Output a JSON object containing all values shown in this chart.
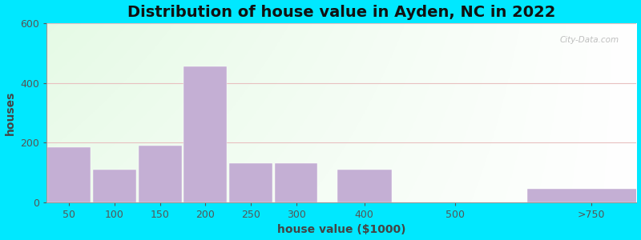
{
  "title": "Distribution of house value in Ayden, NC in 2022",
  "xlabel": "house value ($1000)",
  "ylabel": "houses",
  "bar_labels": [
    "50",
    "100",
    "150",
    "200",
    "250",
    "300",
    "400",
    "500",
    ">750"
  ],
  "bar_heights": [
    185,
    110,
    190,
    455,
    130,
    130,
    110,
    0,
    45
  ],
  "bar_color": "#c4afd4",
  "ylim": [
    0,
    600
  ],
  "yticks": [
    0,
    200,
    400,
    600
  ],
  "title_fontsize": 14,
  "axis_label_fontsize": 10,
  "tick_fontsize": 9,
  "bg_outer": "#00e8ff",
  "grid_color": "#e8c0c0",
  "watermark": "City-Data.com"
}
